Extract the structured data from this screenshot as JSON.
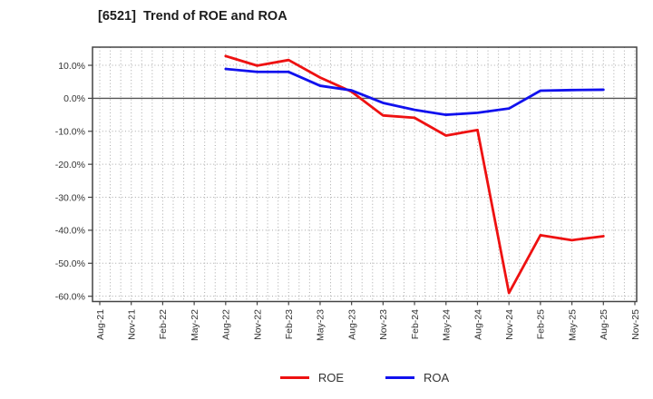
{
  "page": {
    "title": "[6521]  Trend of ROE and ROA"
  },
  "chart_data": {
    "type": "line",
    "title": "[6521]  Trend of ROE and ROA",
    "xlabel": "",
    "ylabel": "",
    "x_tick_labels": [
      "Aug-21",
      "Nov-21",
      "Feb-22",
      "May-22",
      "Aug-22",
      "Nov-22",
      "Feb-23",
      "May-23",
      "Aug-23",
      "Nov-23",
      "Feb-24",
      "May-24",
      "Aug-24",
      "Nov-24",
      "Feb-25",
      "May-25",
      "Aug-25",
      "Nov-25"
    ],
    "months_per_tick": 3,
    "series": [
      {
        "name": "ROE",
        "color": "#ee1111",
        "start_tick_index": 4,
        "x_categories": [
          "Aug-22",
          "Nov-22",
          "Feb-23",
          "May-23",
          "Aug-23",
          "Nov-23",
          "Feb-24",
          "May-24",
          "Aug-24",
          "Nov-24",
          "Feb-25",
          "May-25",
          "Aug-25"
        ],
        "values": [
          12.8,
          9.9,
          11.6,
          6.3,
          2.0,
          -5.2,
          -5.9,
          -11.3,
          -9.6,
          -59.0,
          -41.5,
          -43.0,
          -41.8
        ]
      },
      {
        "name": "ROA",
        "color": "#1111ee",
        "start_tick_index": 4,
        "x_categories": [
          "Aug-22",
          "Nov-22",
          "Feb-23",
          "May-23",
          "Aug-23",
          "Nov-23",
          "Feb-24",
          "May-24",
          "Aug-24",
          "Nov-24",
          "Feb-25",
          "May-25",
          "Aug-25"
        ],
        "values": [
          8.9,
          8.0,
          8.0,
          3.8,
          2.4,
          -1.4,
          -3.5,
          -5.0,
          -4.4,
          -3.1,
          2.3,
          2.5,
          2.6
        ]
      }
    ],
    "yticks": [
      10,
      0,
      -10,
      -20,
      -30,
      -40,
      -50,
      -60
    ],
    "ytick_labels": [
      "10.0%",
      "0.0%",
      "-10.0%",
      "-20.0%",
      "-30.0%",
      "-40.0%",
      "-50.0%",
      "-60.0%"
    ],
    "ylim": [
      -61.6,
      15.5
    ],
    "grid": true,
    "grid_style": "dotted",
    "legend_position": "bottom",
    "frame_color": "#444444",
    "grid_color": "#a8a8a8",
    "zero_line_color": "#555555",
    "tick_text_color": "#333333"
  }
}
